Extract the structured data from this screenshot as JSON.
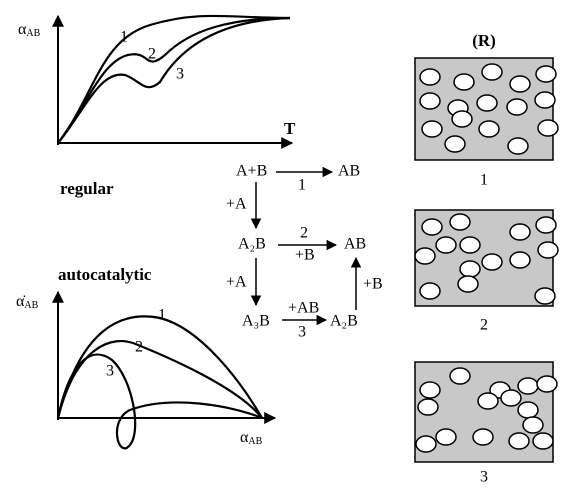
{
  "top_plot": {
    "y_label": {
      "symbol": "α",
      "sub": "AB"
    },
    "x_label": "T",
    "curve_labels": [
      "1",
      "2",
      "3"
    ]
  },
  "modes": [
    "regular",
    "autocatalytic"
  ],
  "bottom_plot": {
    "y_label": {
      "symbol": "α̇",
      "sub": "AB"
    },
    "x_label": {
      "symbol": "α",
      "sub": "AB"
    },
    "curve_labels": [
      "1",
      "2",
      "3"
    ]
  },
  "scheme": {
    "nodes": [
      "A+B",
      "AB",
      "A₂B",
      "AB",
      "A₃B",
      "A₂B"
    ],
    "edge_labels": [
      "1",
      "+A",
      "2",
      "+B",
      "+A",
      "+AB",
      "3",
      "+B"
    ]
  },
  "panels": {
    "title": "(R)",
    "labels": [
      "1",
      "2",
      "3"
    ]
  }
}
